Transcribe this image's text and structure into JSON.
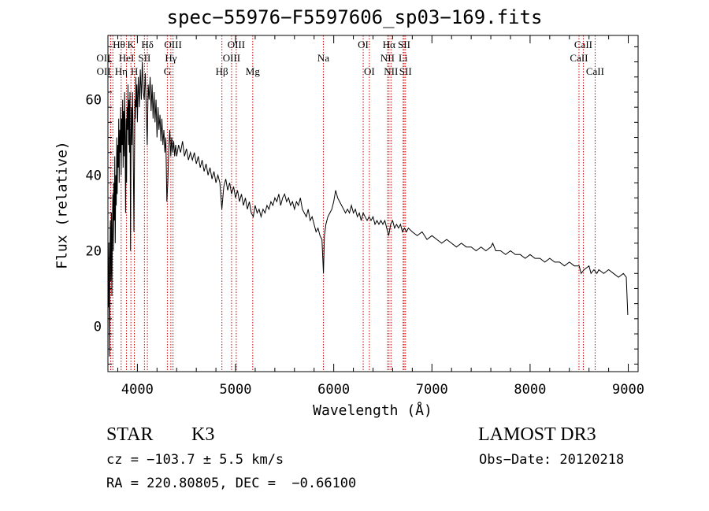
{
  "chart_data": {
    "type": "line",
    "title": "spec−55976−F5597606_sp03−169.fits",
    "xlabel": "Wavelength (Å)",
    "ylabel": "Flux (relative)",
    "xlim": [
      3700,
      9100
    ],
    "ylim": [
      -12,
      77
    ],
    "xticks": [
      4000,
      5000,
      6000,
      7000,
      8000,
      9000
    ],
    "yticks": [
      0,
      20,
      40,
      60
    ],
    "line_color": "#000000",
    "marker_color": "#cc0000",
    "series": [
      {
        "name": "spectrum",
        "points": [
          [
            3700,
            15
          ],
          [
            3705,
            5
          ],
          [
            3710,
            22
          ],
          [
            3715,
            -8
          ],
          [
            3720,
            18
          ],
          [
            3725,
            28
          ],
          [
            3730,
            12
          ],
          [
            3735,
            30
          ],
          [
            3740,
            8
          ],
          [
            3745,
            25
          ],
          [
            3750,
            35
          ],
          [
            3755,
            20
          ],
          [
            3760,
            38
          ],
          [
            3765,
            28
          ],
          [
            3770,
            45
          ],
          [
            3775,
            22
          ],
          [
            3780,
            40
          ],
          [
            3785,
            32
          ],
          [
            3790,
            50
          ],
          [
            3795,
            35
          ],
          [
            3800,
            48
          ],
          [
            3805,
            42
          ],
          [
            3810,
            55
          ],
          [
            3815,
            38
          ],
          [
            3820,
            52
          ],
          [
            3825,
            46
          ],
          [
            3830,
            58
          ],
          [
            3835,
            40
          ],
          [
            3840,
            55
          ],
          [
            3845,
            48
          ],
          [
            3850,
            60
          ],
          [
            3855,
            42
          ],
          [
            3860,
            57
          ],
          [
            3865,
            45
          ],
          [
            3870,
            62
          ],
          [
            3875,
            50
          ],
          [
            3880,
            30
          ],
          [
            3885,
            55
          ],
          [
            3890,
            38
          ],
          [
            3895,
            58
          ],
          [
            3900,
            52
          ],
          [
            3905,
            64
          ],
          [
            3910,
            48
          ],
          [
            3915,
            60
          ],
          [
            3920,
            46
          ],
          [
            3925,
            62
          ],
          [
            3930,
            20
          ],
          [
            3935,
            50
          ],
          [
            3940,
            58
          ],
          [
            3945,
            48
          ],
          [
            3950,
            62
          ],
          [
            3955,
            54
          ],
          [
            3960,
            40
          ],
          [
            3965,
            25
          ],
          [
            3970,
            44
          ],
          [
            3975,
            60
          ],
          [
            3980,
            55
          ],
          [
            3985,
            66
          ],
          [
            3990,
            58
          ],
          [
            3995,
            64
          ],
          [
            4000,
            54
          ],
          [
            4010,
            66
          ],
          [
            4020,
            58
          ],
          [
            4030,
            68
          ],
          [
            4040,
            60
          ],
          [
            4050,
            70
          ],
          [
            4060,
            62
          ],
          [
            4070,
            60
          ],
          [
            4080,
            67
          ],
          [
            4090,
            58
          ],
          [
            4100,
            48
          ],
          [
            4110,
            64
          ],
          [
            4120,
            60
          ],
          [
            4130,
            66
          ],
          [
            4140,
            57
          ],
          [
            4150,
            64
          ],
          [
            4160,
            55
          ],
          [
            4170,
            62
          ],
          [
            4180,
            54
          ],
          [
            4190,
            60
          ],
          [
            4200,
            50
          ],
          [
            4210,
            58
          ],
          [
            4220,
            52
          ],
          [
            4230,
            56
          ],
          [
            4240,
            49
          ],
          [
            4250,
            55
          ],
          [
            4260,
            48
          ],
          [
            4270,
            52
          ],
          [
            4280,
            46
          ],
          [
            4290,
            50
          ],
          [
            4300,
            33
          ],
          [
            4310,
            38
          ],
          [
            4320,
            47
          ],
          [
            4330,
            52
          ],
          [
            4340,
            45
          ],
          [
            4350,
            50
          ],
          [
            4360,
            46
          ],
          [
            4370,
            49
          ],
          [
            4380,
            45
          ],
          [
            4390,
            48
          ],
          [
            4400,
            45
          ],
          [
            4420,
            48
          ],
          [
            4440,
            46
          ],
          [
            4460,
            49
          ],
          [
            4480,
            45
          ],
          [
            4500,
            47
          ],
          [
            4520,
            44
          ],
          [
            4540,
            46
          ],
          [
            4560,
            44
          ],
          [
            4580,
            46
          ],
          [
            4600,
            43
          ],
          [
            4620,
            45
          ],
          [
            4640,
            42
          ],
          [
            4660,
            44
          ],
          [
            4680,
            41
          ],
          [
            4700,
            43
          ],
          [
            4720,
            40
          ],
          [
            4740,
            42
          ],
          [
            4760,
            39
          ],
          [
            4780,
            41
          ],
          [
            4800,
            38
          ],
          [
            4820,
            40
          ],
          [
            4840,
            38
          ],
          [
            4860,
            31
          ],
          [
            4880,
            37
          ],
          [
            4900,
            39
          ],
          [
            4920,
            36
          ],
          [
            4940,
            38
          ],
          [
            4960,
            35
          ],
          [
            4980,
            37
          ],
          [
            5000,
            34
          ],
          [
            5020,
            36
          ],
          [
            5040,
            33
          ],
          [
            5060,
            35
          ],
          [
            5080,
            32
          ],
          [
            5100,
            34
          ],
          [
            5120,
            31
          ],
          [
            5140,
            33
          ],
          [
            5160,
            30
          ],
          [
            5180,
            29
          ],
          [
            5200,
            32
          ],
          [
            5220,
            30
          ],
          [
            5240,
            31
          ],
          [
            5260,
            29
          ],
          [
            5280,
            31
          ],
          [
            5300,
            30
          ],
          [
            5320,
            32
          ],
          [
            5340,
            31
          ],
          [
            5360,
            33
          ],
          [
            5380,
            32
          ],
          [
            5400,
            34
          ],
          [
            5420,
            33
          ],
          [
            5440,
            35
          ],
          [
            5460,
            32
          ],
          [
            5480,
            34
          ],
          [
            5500,
            35
          ],
          [
            5520,
            33
          ],
          [
            5540,
            34
          ],
          [
            5560,
            32
          ],
          [
            5580,
            33
          ],
          [
            5600,
            31
          ],
          [
            5620,
            33
          ],
          [
            5640,
            32
          ],
          [
            5660,
            34
          ],
          [
            5680,
            31
          ],
          [
            5700,
            30
          ],
          [
            5720,
            29
          ],
          [
            5740,
            31
          ],
          [
            5760,
            28
          ],
          [
            5780,
            29
          ],
          [
            5800,
            27
          ],
          [
            5820,
            25
          ],
          [
            5840,
            26
          ],
          [
            5860,
            24
          ],
          [
            5880,
            23
          ],
          [
            5895,
            14
          ],
          [
            5905,
            24
          ],
          [
            5920,
            27
          ],
          [
            5940,
            29
          ],
          [
            5960,
            30
          ],
          [
            5980,
            31
          ],
          [
            6000,
            33
          ],
          [
            6020,
            36
          ],
          [
            6040,
            34
          ],
          [
            6060,
            33
          ],
          [
            6080,
            32
          ],
          [
            6100,
            31
          ],
          [
            6120,
            30
          ],
          [
            6140,
            31
          ],
          [
            6160,
            30
          ],
          [
            6180,
            32
          ],
          [
            6200,
            30
          ],
          [
            6220,
            31
          ],
          [
            6240,
            29
          ],
          [
            6260,
            30
          ],
          [
            6280,
            28
          ],
          [
            6300,
            30
          ],
          [
            6320,
            29
          ],
          [
            6340,
            28
          ],
          [
            6360,
            29
          ],
          [
            6380,
            28
          ],
          [
            6400,
            29
          ],
          [
            6420,
            27
          ],
          [
            6440,
            28
          ],
          [
            6460,
            27
          ],
          [
            6480,
            28
          ],
          [
            6500,
            27
          ],
          [
            6520,
            28
          ],
          [
            6540,
            26
          ],
          [
            6560,
            24
          ],
          [
            6580,
            27
          ],
          [
            6600,
            28
          ],
          [
            6620,
            26
          ],
          [
            6640,
            27
          ],
          [
            6660,
            26
          ],
          [
            6680,
            27
          ],
          [
            6700,
            25
          ],
          [
            6720,
            26
          ],
          [
            6740,
            25
          ],
          [
            6760,
            26
          ],
          [
            6800,
            25
          ],
          [
            6850,
            24
          ],
          [
            6900,
            25
          ],
          [
            6950,
            23
          ],
          [
            7000,
            24
          ],
          [
            7050,
            23
          ],
          [
            7100,
            22
          ],
          [
            7150,
            23
          ],
          [
            7200,
            22
          ],
          [
            7250,
            21
          ],
          [
            7300,
            22
          ],
          [
            7350,
            21
          ],
          [
            7400,
            21
          ],
          [
            7450,
            20
          ],
          [
            7500,
            21
          ],
          [
            7550,
            20
          ],
          [
            7600,
            21
          ],
          [
            7620,
            22
          ],
          [
            7650,
            20
          ],
          [
            7700,
            20
          ],
          [
            7750,
            19
          ],
          [
            7800,
            20
          ],
          [
            7850,
            19
          ],
          [
            7900,
            19
          ],
          [
            7950,
            18
          ],
          [
            8000,
            19
          ],
          [
            8050,
            18
          ],
          [
            8100,
            18
          ],
          [
            8150,
            17
          ],
          [
            8200,
            18
          ],
          [
            8250,
            17
          ],
          [
            8300,
            17
          ],
          [
            8350,
            16
          ],
          [
            8400,
            17
          ],
          [
            8450,
            16
          ],
          [
            8500,
            16
          ],
          [
            8520,
            14
          ],
          [
            8550,
            15
          ],
          [
            8600,
            16
          ],
          [
            8620,
            14
          ],
          [
            8650,
            15
          ],
          [
            8680,
            14
          ],
          [
            8700,
            15
          ],
          [
            8750,
            14
          ],
          [
            8800,
            15
          ],
          [
            8850,
            14
          ],
          [
            8900,
            13
          ],
          [
            8950,
            14
          ],
          [
            8980,
            13
          ],
          [
            8995,
            3
          ]
        ]
      }
    ],
    "line_markers": [
      {
        "label": "OII",
        "wave": 3727,
        "row": 2,
        "ha": "right"
      },
      {
        "label": "OII",
        "wave": 3729,
        "row": 3,
        "ha": "right"
      },
      {
        "label": "Hθ",
        "wave": 3750,
        "row": 1,
        "ha": "left"
      },
      {
        "label": "Hη",
        "wave": 3835,
        "row": 3,
        "ha": "center"
      },
      {
        "label": "HeI",
        "wave": 3889,
        "row": 2,
        "ha": "center"
      },
      {
        "label": "K",
        "wave": 3934,
        "row": 1,
        "ha": "center"
      },
      {
        "label": "H",
        "wave": 3969,
        "row": 3,
        "ha": "center"
      },
      {
        "label": "SII",
        "wave": 4072,
        "row": 2,
        "ha": "center"
      },
      {
        "label": "Hδ",
        "wave": 4102,
        "row": 1,
        "ha": "center"
      },
      {
        "label": "G",
        "wave": 4305,
        "row": 3,
        "ha": "center"
      },
      {
        "label": "Hγ",
        "wave": 4341,
        "row": 2,
        "ha": "center"
      },
      {
        "label": "OIII",
        "wave": 4363,
        "row": 1,
        "ha": "center"
      },
      {
        "label": "Hβ",
        "wave": 4861,
        "row": 3,
        "ha": "center"
      },
      {
        "label": "OIII",
        "wave": 4959,
        "row": 2,
        "ha": "center"
      },
      {
        "label": "OIII",
        "wave": 5007,
        "row": 1,
        "ha": "center"
      },
      {
        "label": "Mg",
        "wave": 5175,
        "row": 3,
        "ha": "center"
      },
      {
        "label": "Na",
        "wave": 5894,
        "row": 2,
        "ha": "center"
      },
      {
        "label": "OI",
        "wave": 6300,
        "row": 1,
        "ha": "center"
      },
      {
        "label": "OI",
        "wave": 6363,
        "row": 3,
        "ha": "center"
      },
      {
        "label": "NII",
        "wave": 6548,
        "row": 2,
        "ha": "center"
      },
      {
        "label": "Hα",
        "wave": 6563,
        "row": 1,
        "ha": "center"
      },
      {
        "label": "NII",
        "wave": 6583,
        "row": 3,
        "ha": "center"
      },
      {
        "label": "Li",
        "wave": 6707,
        "row": 2,
        "ha": "center"
      },
      {
        "label": "SII",
        "wave": 6717,
        "row": 1,
        "ha": "center"
      },
      {
        "label": "SII",
        "wave": 6731,
        "row": 3,
        "ha": "center"
      },
      {
        "label": "CaII",
        "wave": 8498,
        "row": 2,
        "ha": "center"
      },
      {
        "label": "CaII",
        "wave": 8542,
        "row": 1,
        "ha": "center"
      },
      {
        "label": "CaII",
        "wave": 8662,
        "row": 3,
        "ha": "center"
      }
    ]
  },
  "info": {
    "class": "STAR",
    "subclass": "K3",
    "survey": "LAMOST DR3",
    "cz": "cz = −103.7 ± 5.5 km/s",
    "obs_date": "Obs−Date: 20120218",
    "coords": "RA = 220.80805, DEC =  −0.66100"
  }
}
